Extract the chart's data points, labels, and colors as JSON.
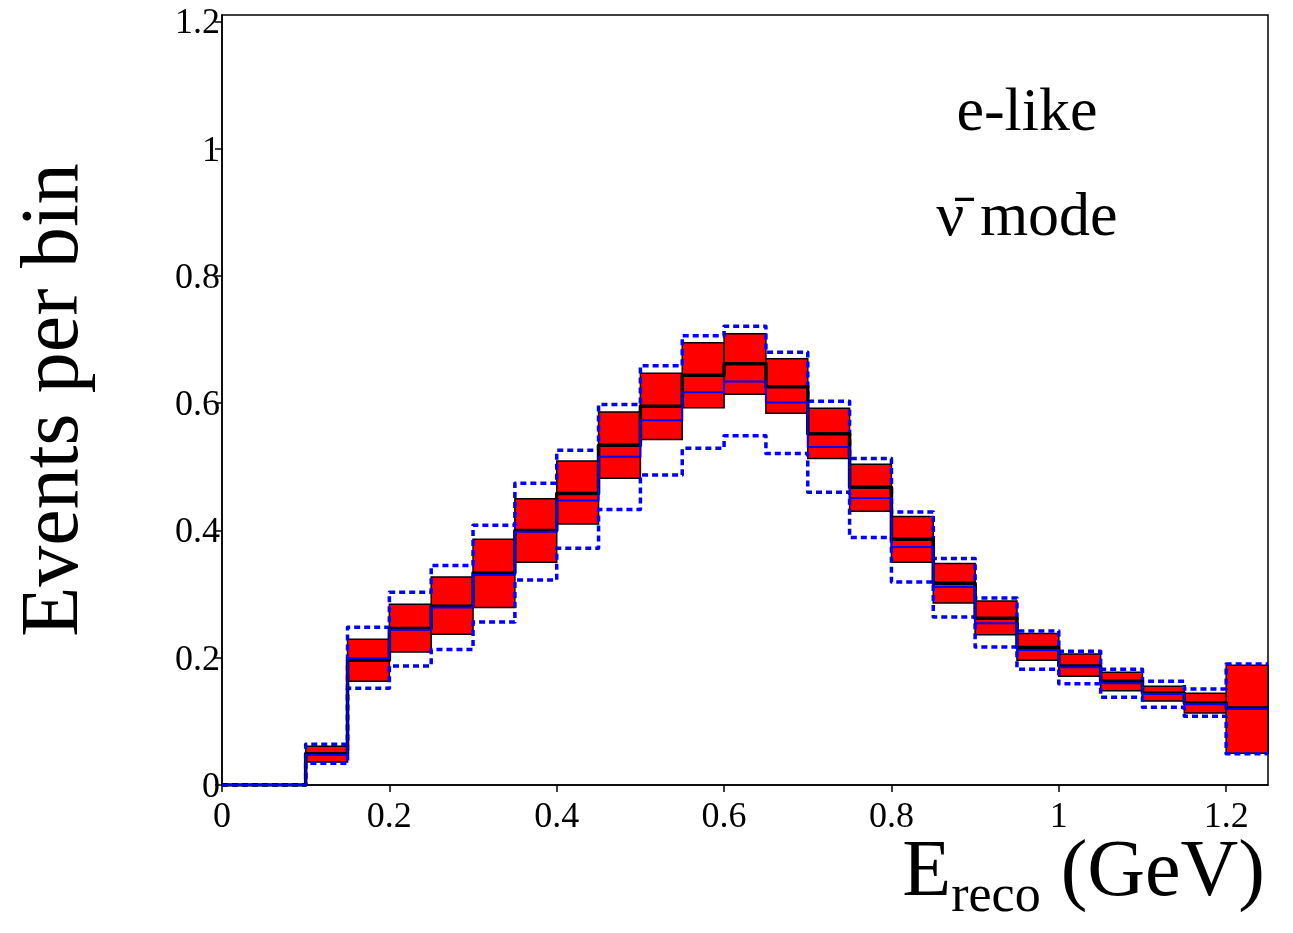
{
  "chart_data": {
    "type": "step",
    "xlabel": "E$_{reco}$ (GeV)",
    "ylabel": "Events per bin",
    "annotations": [
      "e-like",
      "ν̄ mode"
    ],
    "x": [
      0,
      0.05,
      0.1,
      0.15,
      0.2,
      0.25,
      0.3,
      0.35,
      0.4,
      0.45,
      0.5,
      0.55,
      0.6,
      0.65,
      0.7,
      0.75,
      0.8,
      0.85,
      0.9,
      0.95,
      1.0,
      1.05,
      1.1,
      1.15,
      1.2,
      1.25
    ],
    "series": [
      {
        "type": "bar",
        "color": "#ff0000",
        "x": [
          0.125,
          0.175,
          0.225,
          0.275,
          0.325,
          0.375,
          0.425,
          0.475,
          0.525,
          0.575,
          0.625,
          0.675,
          0.725,
          0.775,
          0.825,
          0.875,
          0.925,
          0.975,
          1.025,
          1.075,
          1.125,
          1.175,
          1.225
        ],
        "base": [
          0.036,
          0.163,
          0.209,
          0.237,
          0.279,
          0.35,
          0.41,
          0.482,
          0.543,
          0.593,
          0.614,
          0.584,
          0.513,
          0.43,
          0.35,
          0.286,
          0.236,
          0.196,
          0.171,
          0.148,
          0.132,
          0.113,
          0.05
        ],
        "values": [
          0.025,
          0.066,
          0.075,
          0.09,
          0.107,
          0.1,
          0.099,
          0.104,
          0.104,
          0.102,
          0.095,
          0.086,
          0.079,
          0.074,
          0.072,
          0.062,
          0.053,
          0.042,
          0.035,
          0.029,
          0.023,
          0.031,
          0.138
        ]
      },
      {
        "color": "#0000ff",
        "line_style": "dashed",
        "values": [
          0,
          0,
          0.064,
          0.248,
          0.303,
          0.345,
          0.408,
          0.474,
          0.526,
          0.598,
          0.659,
          0.706,
          0.721,
          0.68,
          0.603,
          0.513,
          0.429,
          0.356,
          0.294,
          0.242,
          0.21,
          0.182,
          0.163,
          0.151,
          0.19,
          0.19
        ]
      },
      {
        "color": "#0000ff",
        "line_style": "dashed",
        "values": [
          0,
          0,
          0.034,
          0.152,
          0.187,
          0.213,
          0.256,
          0.322,
          0.372,
          0.433,
          0.487,
          0.529,
          0.549,
          0.521,
          0.46,
          0.389,
          0.319,
          0.264,
          0.217,
          0.182,
          0.159,
          0.138,
          0.122,
          0.108,
          0.049,
          0.049
        ]
      },
      {
        "color": "#000000",
        "line_style": "solid",
        "values": [
          0,
          0,
          0.049,
          0.196,
          0.246,
          0.281,
          0.333,
          0.4,
          0.458,
          0.534,
          0.595,
          0.644,
          0.662,
          0.626,
          0.552,
          0.468,
          0.386,
          0.317,
          0.262,
          0.216,
          0.187,
          0.163,
          0.144,
          0.129,
          0.121,
          0.121
        ]
      },
      {
        "color": "#0000ff",
        "line_style": "solid",
        "values": [
          0,
          0,
          0.047,
          0.199,
          0.244,
          0.279,
          0.33,
          0.398,
          0.447,
          0.516,
          0.573,
          0.617,
          0.634,
          0.601,
          0.531,
          0.451,
          0.374,
          0.311,
          0.254,
          0.212,
          0.185,
          0.16,
          0.143,
          0.127,
          0.12,
          0.12
        ]
      }
    ],
    "xlim": [
      0,
      1.25
    ],
    "xticks": [
      0,
      0.2,
      0.4,
      0.6,
      0.8,
      1,
      1.2
    ],
    "ylim": [
      0,
      1.21
    ],
    "yticks": [
      0,
      0.2,
      0.4,
      0.6,
      0.8,
      1,
      1.2
    ],
    "grid": false
  }
}
